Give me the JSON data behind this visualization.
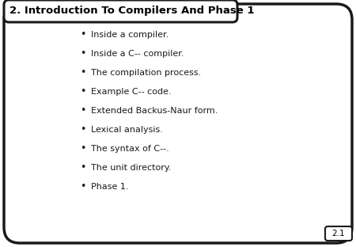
{
  "title": "2. Introduction To Compilers And Phase 1",
  "bullet_points": [
    "Inside a compiler.",
    "Inside a C-- compiler.",
    "The compilation process.",
    "Example C-- code.",
    "Extended Backus-Naur form.",
    "Lexical analysis.",
    "The syntax of C--.",
    "The unit directory.",
    "Phase 1."
  ],
  "slide_number": "2.1",
  "background_color": "#ffffff",
  "border_color": "#1a1a1a",
  "title_bg_color": "#cccccc",
  "title_font_size": 9.5,
  "bullet_font_size": 8.0,
  "slide_num_font_size": 7.5,
  "fig_width": 4.5,
  "fig_height": 3.12,
  "dpi": 100
}
